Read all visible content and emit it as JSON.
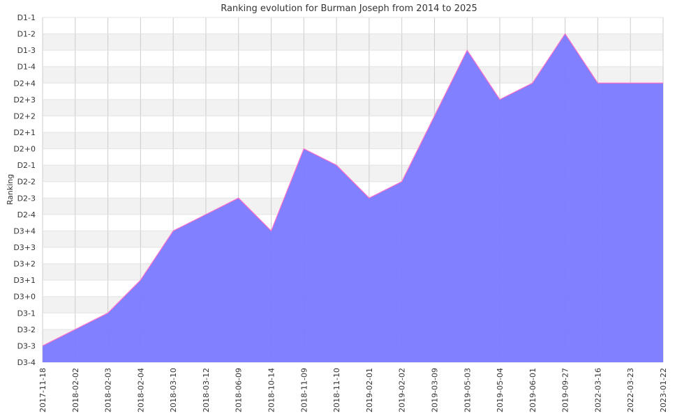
{
  "chart_data": {
    "type": "area",
    "title": "Ranking evolution for Burman Joseph from 2014 to 2025",
    "xlabel": "",
    "ylabel": "Ranking",
    "y_levels": [
      "D3-4",
      "D3-3",
      "D3-2",
      "D3-1",
      "D3+0",
      "D3+1",
      "D3+2",
      "D3+3",
      "D3+4",
      "D2-4",
      "D2-3",
      "D2-2",
      "D2-1",
      "D2+0",
      "D2+1",
      "D2+2",
      "D2+3",
      "D2+4",
      "D1-4",
      "D1-3",
      "D1-2",
      "D1-1"
    ],
    "x": [
      "2017-11-18",
      "2018-02-02",
      "2018-02-03",
      "2018-02-04",
      "2018-03-10",
      "2018-03-12",
      "2018-06-09",
      "2018-10-14",
      "2018-11-09",
      "2018-11-10",
      "2019-02-01",
      "2019-02-02",
      "2019-03-09",
      "2019-05-03",
      "2019-05-04",
      "2019-06-01",
      "2019-09-27",
      "2022-03-16",
      "2022-03-23",
      "2023-01-22"
    ],
    "series": [
      {
        "values": [
          "D3-3",
          "D3-2",
          "D3-1",
          "D3+1",
          "D3+4",
          "D2-4",
          "D2-3",
          "D3+4",
          "D2+0",
          "D2-1",
          "D2-3",
          "D2-2",
          "D2+2",
          "D1-3",
          "D2+3",
          "D2+4",
          "D1-2",
          "D2+4",
          "D2+4",
          "D2+4"
        ]
      }
    ],
    "colors": {
      "fill": "#7a7aff",
      "line": "#ff6ec7",
      "band": "#f2f2f2",
      "grid": "#cccccc"
    },
    "grid": true,
    "legend": "none"
  }
}
